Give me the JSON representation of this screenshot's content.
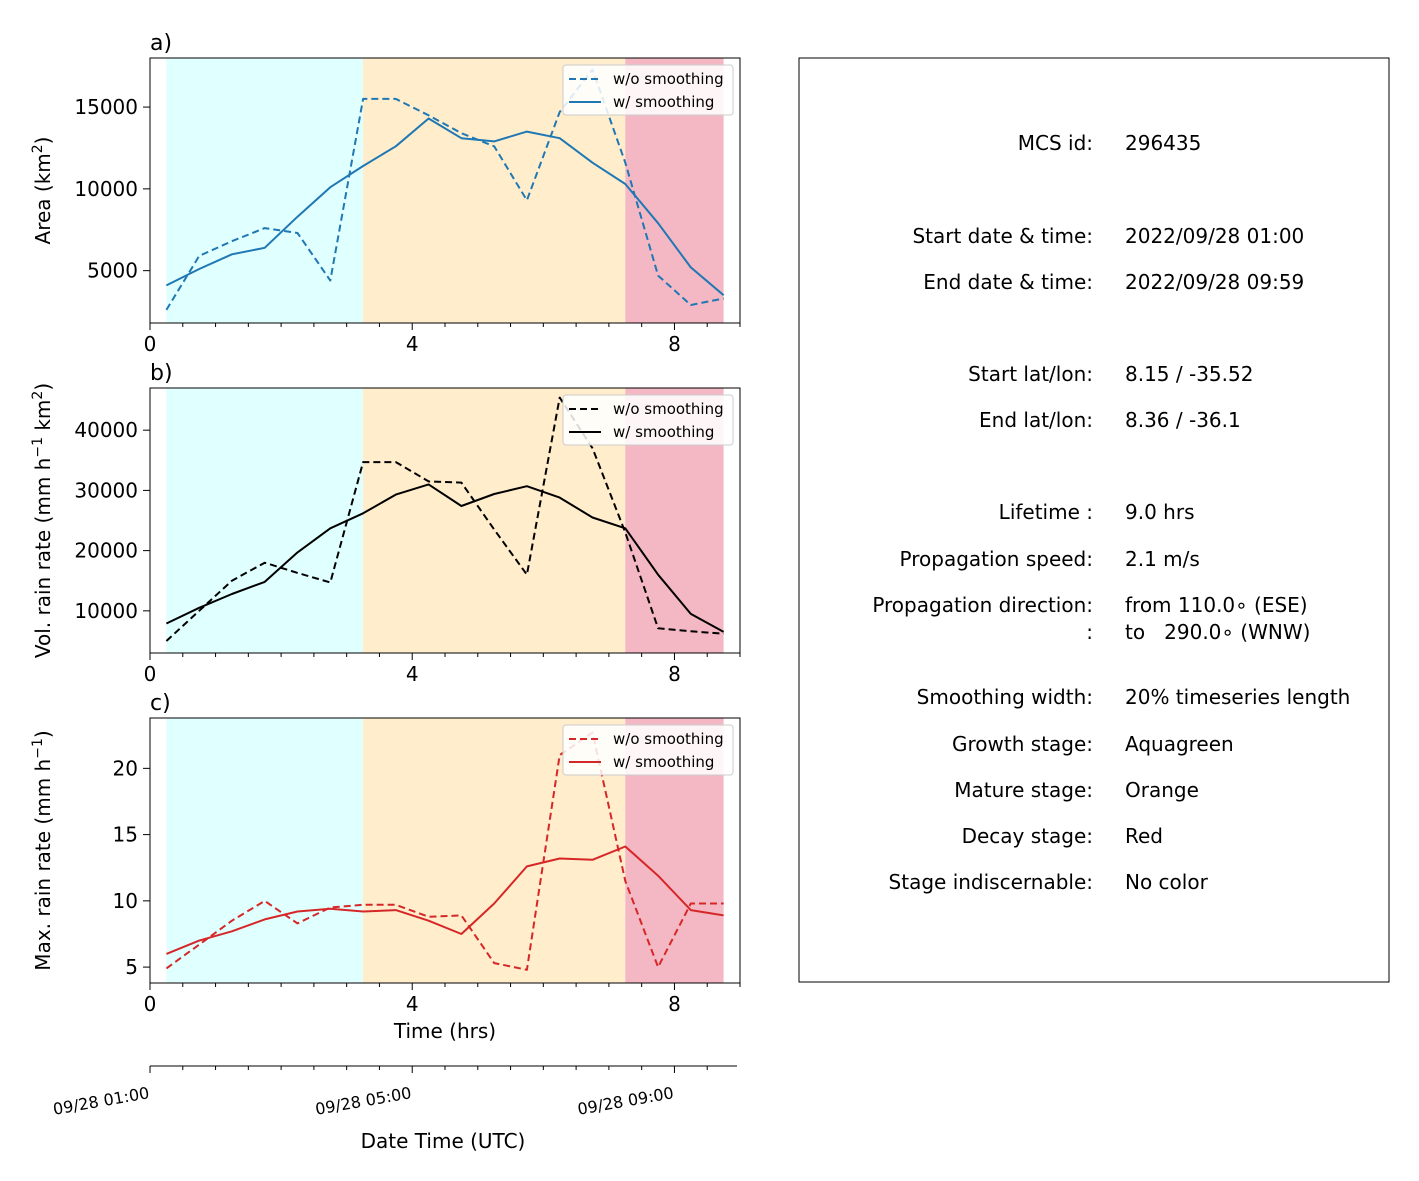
{
  "chart_data": [
    {
      "type": "line",
      "panel_label": "a)",
      "ylabel": "Area  (km²)",
      "ylabel_main": "Area  (km",
      "ylabel_sup": "2",
      "ylabel_end": ")",
      "xlabel": "",
      "xlim": [
        0,
        9.0
      ],
      "ylim": [
        1800,
        18000
      ],
      "xticks": [
        0,
        4,
        8
      ],
      "yticks": [
        5000,
        10000,
        15000
      ],
      "color": "#1f77b4",
      "stages": [
        {
          "name": "Growth stage",
          "from": 0.25,
          "to": 3.25,
          "color": "#e0ffff"
        },
        {
          "name": "Mature stage",
          "from": 3.25,
          "to": 7.25,
          "color": "#ffedcc"
        },
        {
          "name": "Decay stage",
          "from": 7.25,
          "to": 8.75,
          "color": "#f4b8c4"
        }
      ],
      "x": [
        0.25,
        0.75,
        1.25,
        1.75,
        2.25,
        2.75,
        3.25,
        3.75,
        4.25,
        4.75,
        5.25,
        5.75,
        6.25,
        6.75,
        7.25,
        7.75,
        8.25,
        8.75
      ],
      "series": [
        {
          "name": "w/o smoothing",
          "style": "dashed",
          "values": [
            2600,
            5900,
            6800,
            7600,
            7300,
            4400,
            15500,
            15500,
            14500,
            13400,
            12600,
            9300,
            14700,
            17300,
            11600,
            4700,
            2900,
            3300
          ]
        },
        {
          "name": "w/ smoothing",
          "style": "solid",
          "values": [
            4100,
            5100,
            6000,
            6400,
            8300,
            10100,
            11400,
            12600,
            14300,
            13100,
            12900,
            13500,
            13100,
            11600,
            10300,
            7900,
            5200,
            3500
          ]
        }
      ],
      "legend": "top-right"
    },
    {
      "type": "line",
      "panel_label": "b)",
      "ylabel": "Vol. rain rate (mm h⁻¹ km²)",
      "ylabel_main": "Vol. rain rate (mm h",
      "ylabel_sup": "−1",
      "ylabel_mid": " km",
      "ylabel_sup2": "2",
      "ylabel_end": ")",
      "xlabel": "",
      "xlim": [
        0,
        9.0
      ],
      "ylim": [
        3000,
        47000
      ],
      "xticks": [
        0,
        4,
        8
      ],
      "yticks": [
        10000,
        20000,
        30000,
        40000
      ],
      "color": "#000000",
      "stages": [
        {
          "name": "Growth stage",
          "from": 0.25,
          "to": 3.25,
          "color": "#e0ffff"
        },
        {
          "name": "Mature stage",
          "from": 3.25,
          "to": 7.25,
          "color": "#ffedcc"
        },
        {
          "name": "Decay stage",
          "from": 7.25,
          "to": 8.75,
          "color": "#f4b8c4"
        }
      ],
      "x": [
        0.25,
        0.75,
        1.25,
        1.75,
        2.25,
        2.75,
        3.25,
        3.75,
        4.25,
        4.75,
        5.25,
        5.75,
        6.25,
        6.75,
        7.25,
        7.75,
        8.25,
        8.75
      ],
      "series": [
        {
          "name": "w/o smoothing",
          "style": "dashed",
          "values": [
            5000,
            10000,
            15000,
            18000,
            16300,
            14700,
            34700,
            34700,
            31500,
            31300,
            23500,
            16000,
            45400,
            37000,
            23000,
            7100,
            6600,
            6200
          ]
        },
        {
          "name": "w/ smoothing",
          "style": "solid",
          "values": [
            7900,
            10500,
            12800,
            14800,
            19700,
            23700,
            26200,
            29300,
            31000,
            27400,
            29400,
            30700,
            28800,
            25500,
            23700,
            16000,
            9500,
            6500
          ]
        }
      ],
      "legend": "top-right"
    },
    {
      "type": "line",
      "panel_label": "c)",
      "ylabel": "Max. rain rate  (mm h⁻¹)",
      "ylabel_main": "Max. rain rate  (mm h",
      "ylabel_sup": "−1",
      "ylabel_end": ")",
      "xlabel": "Time (hrs)",
      "xlim": [
        0,
        9.0
      ],
      "ylim": [
        3.8,
        23.8
      ],
      "xticks": [
        0,
        4,
        8
      ],
      "yticks": [
        5,
        10,
        15,
        20
      ],
      "color": "#d62728",
      "stages": [
        {
          "name": "Growth stage",
          "from": 0.25,
          "to": 3.25,
          "color": "#e0ffff"
        },
        {
          "name": "Mature stage",
          "from": 3.25,
          "to": 7.25,
          "color": "#ffedcc"
        },
        {
          "name": "Decay stage",
          "from": 7.25,
          "to": 8.75,
          "color": "#f4b8c4"
        }
      ],
      "x": [
        0.25,
        0.75,
        1.25,
        1.75,
        2.25,
        2.75,
        3.25,
        3.75,
        4.25,
        4.75,
        5.25,
        5.75,
        6.25,
        6.75,
        7.25,
        7.75,
        8.25,
        8.75
      ],
      "series": [
        {
          "name": "w/o smoothing",
          "style": "dashed",
          "values": [
            4.9,
            6.7,
            8.5,
            10.0,
            8.3,
            9.5,
            9.7,
            9.7,
            8.8,
            8.9,
            5.3,
            4.8,
            21.0,
            22.7,
            11.5,
            5.0,
            9.8,
            9.8
          ]
        },
        {
          "name": "w/ smoothing",
          "style": "solid",
          "values": [
            6.0,
            7.0,
            7.7,
            8.6,
            9.2,
            9.4,
            9.2,
            9.3,
            8.5,
            7.5,
            9.8,
            12.6,
            13.2,
            13.1,
            14.1,
            11.9,
            9.3,
            8.9
          ]
        }
      ],
      "legend": "top-right"
    }
  ],
  "date_axis": {
    "label": "Date Time (UTC)",
    "ticks": [
      {
        "label": "09/28 01:00",
        "hours": 0
      },
      {
        "label": "09/28 05:00",
        "hours": 4
      },
      {
        "label": "09/28 09:00",
        "hours": 8
      }
    ],
    "minor_step_hours": 0.5
  },
  "info": {
    "rows": [
      {
        "label": "MCS id:",
        "value": "296435"
      },
      {
        "label": "Start date & time:",
        "value": "2022/09/28 01:00"
      },
      {
        "label": "End date & time:",
        "value": "2022/09/28 09:59"
      },
      {
        "label": "Start lat/lon:",
        "value": "8.15 / -35.52"
      },
      {
        "label": "End lat/lon:",
        "value": "8.36 / -36.1"
      },
      {
        "label": "Lifetime :",
        "value": "9.0 hrs"
      },
      {
        "label": "Propagation speed:",
        "value": "2.1 m/s"
      },
      {
        "label": "Propagation direction:",
        "value": "from 110.0∘ (ESE)"
      },
      {
        "label": ":",
        "value": "to   290.0∘ (WNW)"
      },
      {
        "label": "Smoothing width:",
        "value": "20% timeseries length"
      },
      {
        "label": "Growth stage:",
        "value": "Aquagreen"
      },
      {
        "label": "Mature stage:",
        "value": "Orange"
      },
      {
        "label": "Decay stage:",
        "value": "Red"
      },
      {
        "label": "Stage indiscernable:",
        "value": "No color"
      }
    ]
  }
}
